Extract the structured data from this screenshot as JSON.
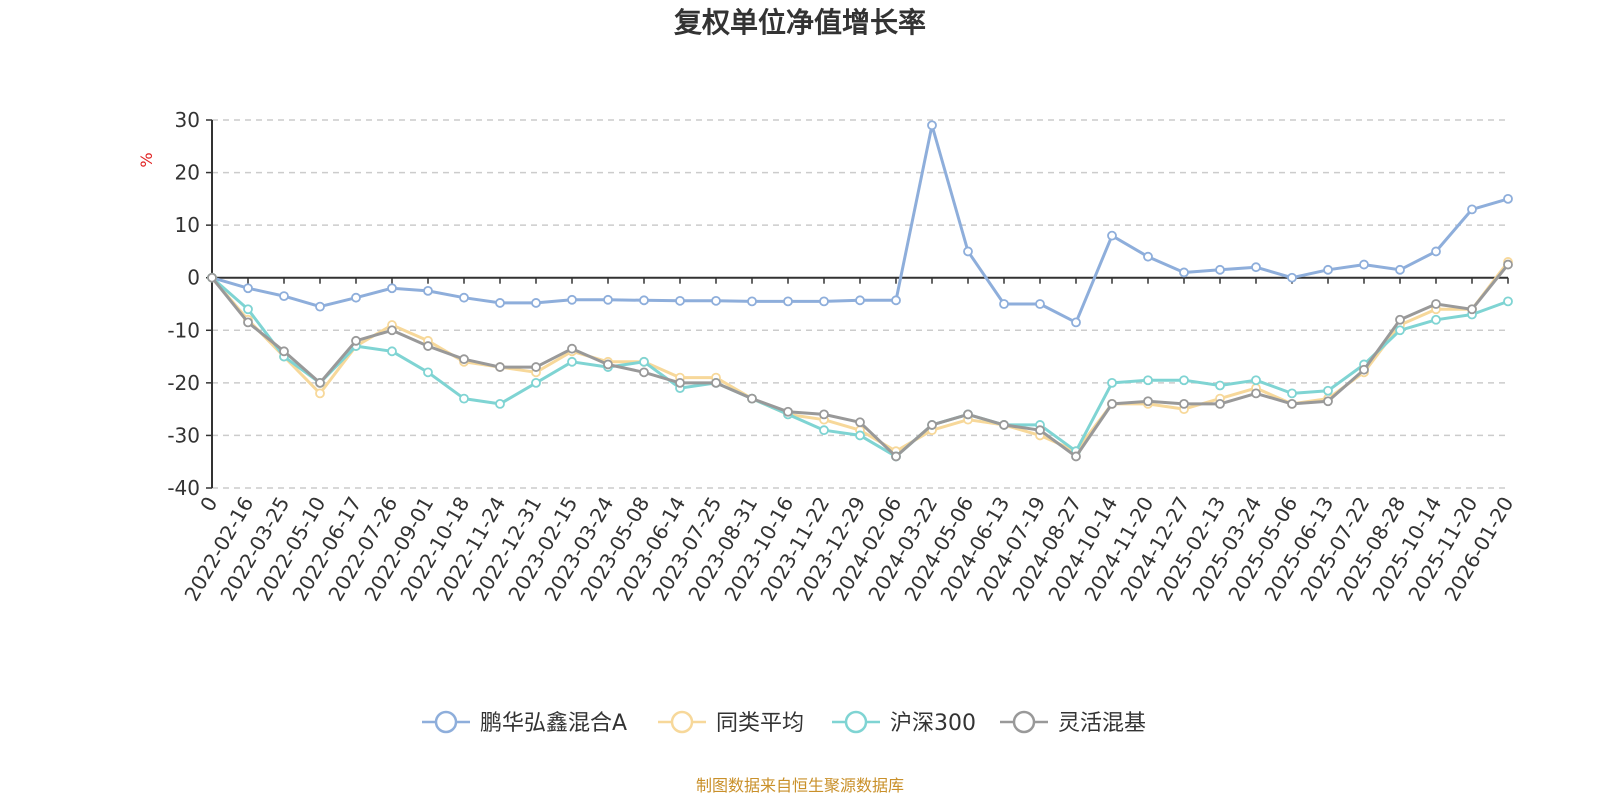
{
  "chart_data": {
    "type": "line",
    "title": "复权单位净值增长率",
    "ylabel": "%",
    "ylim": [
      -40,
      30
    ],
    "yticks": [
      30,
      20,
      10,
      0,
      -10,
      -20,
      -30,
      -40
    ],
    "grid": true,
    "legend_position": "bottom",
    "categories": [
      "0",
      "2022-02-16",
      "2022-03-25",
      "2022-05-10",
      "2022-06-17",
      "2022-07-26",
      "2022-09-01",
      "2022-10-18",
      "2022-11-24",
      "2022-12-31",
      "2023-02-15",
      "2023-03-24",
      "2023-05-08",
      "2023-06-14",
      "2023-07-25",
      "2023-08-31",
      "2023-10-16",
      "2023-11-22",
      "2023-12-29",
      "2024-02-06",
      "2024-03-22",
      "2024-05-06",
      "2024-06-13",
      "2024-07-19",
      "2024-08-27",
      "2024-10-14",
      "2024-11-20",
      "2024-12-27",
      "2025-02-13",
      "2025-03-24",
      "2025-05-06",
      "2025-06-13",
      "2025-07-22",
      "2025-08-28",
      "2025-10-14",
      "2025-11-20",
      "2026-01-20"
    ],
    "series": [
      {
        "name": "鹏华弘鑫混合A",
        "color": "#8eaedb",
        "values": [
          0,
          -2,
          -3.5,
          -5.5,
          -3.8,
          -2,
          -2.5,
          -3.8,
          -4.8,
          -4.8,
          -4.2,
          -4.2,
          -4.3,
          -4.4,
          -4.4,
          -4.5,
          -4.5,
          -4.5,
          -4.3,
          -4.3,
          29,
          5,
          -5,
          -5,
          -8.5,
          8,
          4,
          1,
          1.5,
          2,
          0,
          1.5,
          2.5,
          1.5,
          5,
          13,
          15
        ]
      },
      {
        "name": "同类平均",
        "color": "#f7d89a",
        "values": [
          0,
          -8,
          -15,
          -22,
          -13,
          -9,
          -12,
          -16,
          -17,
          -18,
          -14,
          -16,
          -16,
          -19,
          -19,
          -23,
          -26,
          -27,
          -29,
          -33,
          -29,
          -27,
          -28,
          -30,
          -33,
          -24,
          -24,
          -25,
          -23,
          -21,
          -24,
          -23,
          -18,
          -9,
          -6,
          -6,
          3
        ]
      },
      {
        "name": "沪深300",
        "color": "#7fd4d3",
        "values": [
          0,
          -6,
          -15,
          -20,
          -13,
          -14,
          -18,
          -23,
          -24,
          -20,
          -16,
          -17,
          -16,
          -21,
          -20,
          -23,
          -26,
          -29,
          -30,
          -34,
          -28,
          -26,
          -28,
          -28,
          -33,
          -20,
          -19.5,
          -19.5,
          -20.5,
          -19.5,
          -22,
          -21.5,
          -16.5,
          -10,
          -8,
          -7,
          -4.5
        ]
      },
      {
        "name": "灵活混基",
        "color": "#999999",
        "values": [
          0,
          -8.5,
          -14,
          -20,
          -12,
          -10,
          -13,
          -15.5,
          -17,
          -17,
          -13.5,
          -16.5,
          -18,
          -20,
          -20,
          -23,
          -25.5,
          -26,
          -27.5,
          -34,
          -28,
          -26,
          -28,
          -29,
          -34,
          -24,
          -23.5,
          -24,
          -24,
          -22,
          -24,
          -23.5,
          -17.5,
          -8,
          -5,
          -6,
          2.5
        ]
      }
    ]
  },
  "source_text": "制图数据来自恒生聚源数据库",
  "colors": {
    "axis": "#333333",
    "grid": "#cccccc",
    "ylabel": "#e02020",
    "source": "#c9902a"
  }
}
